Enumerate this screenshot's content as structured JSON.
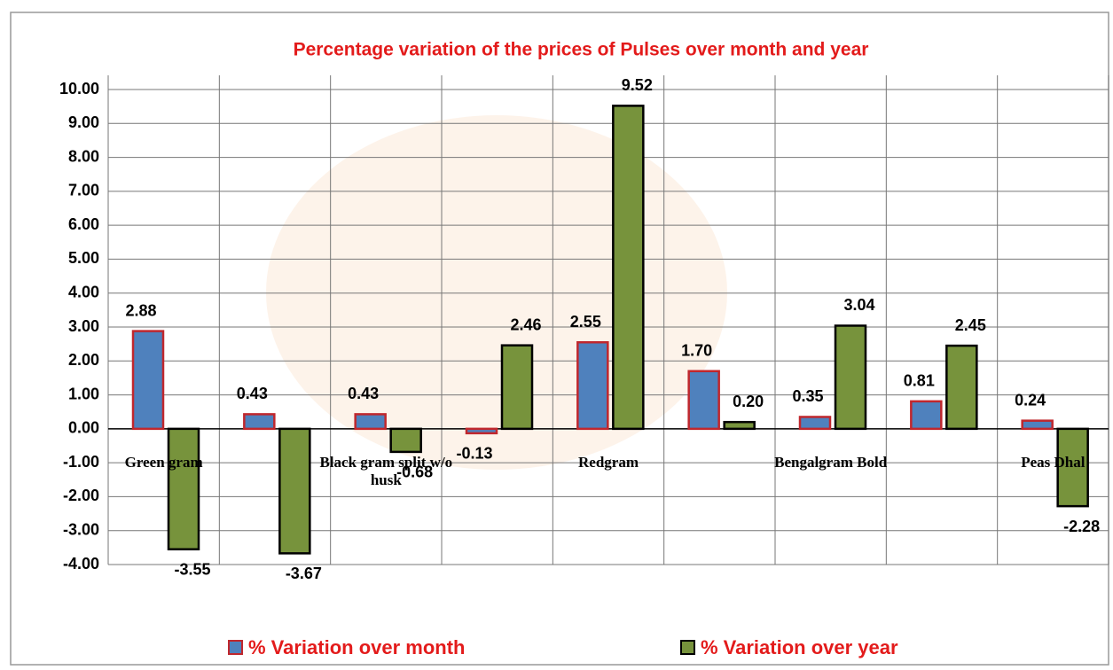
{
  "chart_data": {
    "type": "bar",
    "title": "Percentage variation of the prices of Pulses over month and year",
    "categories": [
      "Green gram",
      null,
      "Black gram  split w/o husk",
      null,
      "Redgram",
      null,
      "Bengalgram Bold",
      null,
      "Peas Dhal"
    ],
    "series": [
      {
        "name": "% Variation over month",
        "color": "#4f81bd",
        "values": [
          2.88,
          0.43,
          0.43,
          -0.13,
          2.55,
          1.7,
          0.35,
          0.81,
          0.24
        ],
        "value_labels": [
          "2.88",
          "0.43",
          "0.43",
          "-0.13",
          "2.55",
          "1.70",
          "0.35",
          "0.81",
          "0.24"
        ]
      },
      {
        "name": "% Variation over year",
        "color": "#77933c",
        "values": [
          -3.55,
          -3.67,
          -0.68,
          2.46,
          9.52,
          0.2,
          3.04,
          2.45,
          -2.28
        ],
        "value_labels": [
          "-3.55",
          "-3.67",
          "-0.68",
          "2.46",
          "9.52",
          "0.20",
          "3.04",
          "2.45",
          "-2.28"
        ]
      }
    ],
    "ylim": [
      -4,
      10
    ],
    "yticks": [
      {
        "value": -4,
        "label": "-4.00"
      },
      {
        "value": -3,
        "label": "-3.00"
      },
      {
        "value": -2,
        "label": "-2.00"
      },
      {
        "value": -1,
        "label": "-1.00"
      },
      {
        "value": 0,
        "label": "0.00"
      },
      {
        "value": 1,
        "label": "1.00"
      },
      {
        "value": 2,
        "label": "2.00"
      },
      {
        "value": 3,
        "label": "3.00"
      },
      {
        "value": 4,
        "label": "4.00"
      },
      {
        "value": 5,
        "label": "5.00"
      },
      {
        "value": 6,
        "label": "6.00"
      },
      {
        "value": 7,
        "label": "7.00"
      },
      {
        "value": 8,
        "label": "8.00"
      },
      {
        "value": 9,
        "label": "9.00"
      },
      {
        "value": 10,
        "label": "10.00"
      }
    ],
    "grid": true
  }
}
